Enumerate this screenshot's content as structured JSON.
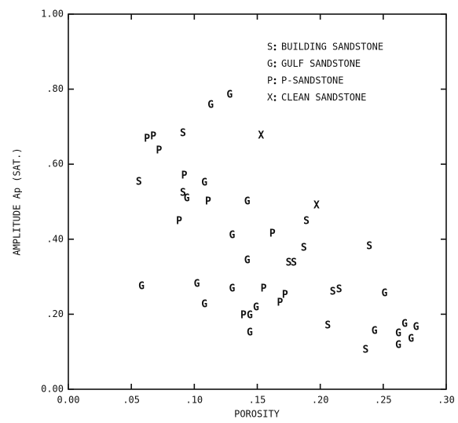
{
  "chart_data": {
    "type": "scatter",
    "xlabel": "POROSITY",
    "ylabel": "AMPLITUDE Ap (SAT.)",
    "xlim": [
      0,
      0.3
    ],
    "ylim": [
      0,
      1.0
    ],
    "xticks": [
      {
        "value": 0,
        "label": "0.00"
      },
      {
        "value": 0.05,
        "label": ".05"
      },
      {
        "value": 0.1,
        "label": ".10"
      },
      {
        "value": 0.15,
        "label": ".15"
      },
      {
        "value": 0.2,
        "label": ".20"
      },
      {
        "value": 0.25,
        "label": ".25"
      },
      {
        "value": 0.3,
        "label": ".30"
      }
    ],
    "yticks": [
      {
        "value": 0,
        "label": "0.00"
      },
      {
        "value": 0.2,
        "label": ".20"
      },
      {
        "value": 0.4,
        "label": ".40"
      },
      {
        "value": 0.6,
        "label": ".60"
      },
      {
        "value": 0.8,
        "label": ".80"
      },
      {
        "value": 1.0,
        "label": "1.00"
      }
    ],
    "legend": "upper right",
    "series": [
      {
        "name": "BUILDING SANDSTONE",
        "marker": "S",
        "color": "#111111",
        "x": [
          0.056,
          0.091,
          0.091,
          0.189,
          0.187,
          0.239,
          0.175,
          0.179,
          0.21,
          0.215,
          0.206,
          0.236
        ],
        "values": [
          0.552,
          0.682,
          0.523,
          0.448,
          0.377,
          0.381,
          0.337,
          0.337,
          0.259,
          0.266,
          0.169,
          0.105
        ]
      },
      {
        "name": "GULF SANDSTONE",
        "marker": "G",
        "color": "#111111",
        "x": [
          0.113,
          0.128,
          0.108,
          0.094,
          0.142,
          0.13,
          0.142,
          0.058,
          0.102,
          0.13,
          0.108,
          0.251,
          0.144,
          0.149,
          0.144,
          0.243,
          0.262,
          0.267,
          0.276,
          0.262,
          0.272
        ],
        "values": [
          0.757,
          0.785,
          0.55,
          0.508,
          0.5,
          0.41,
          0.343,
          0.274,
          0.28,
          0.268,
          0.226,
          0.255,
          0.197,
          0.218,
          0.151,
          0.155,
          0.149,
          0.174,
          0.165,
          0.117,
          0.134
        ]
      },
      {
        "name": "P-SANDSTONE",
        "marker": "P",
        "color": "#111111",
        "x": [
          0.0625,
          0.0675,
          0.072,
          0.092,
          0.111,
          0.088,
          0.162,
          0.155,
          0.172,
          0.168,
          0.139
        ],
        "values": [
          0.667,
          0.674,
          0.636,
          0.569,
          0.5,
          0.448,
          0.414,
          0.268,
          0.251,
          0.23,
          0.197
        ]
      },
      {
        "name": "CLEAN SANDSTONE",
        "marker": "X",
        "color": "#111111",
        "x": [
          0.153,
          0.197
        ],
        "values": [
          0.676,
          0.49
        ]
      }
    ]
  }
}
